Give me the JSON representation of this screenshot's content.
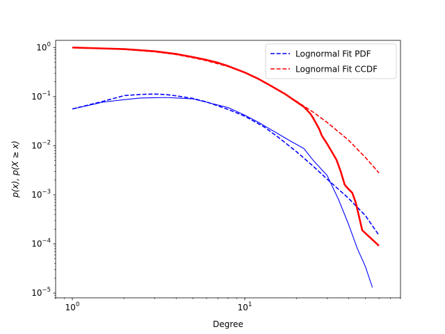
{
  "chart_data": {
    "type": "line",
    "x_scale": "log",
    "y_scale": "log",
    "xlabel": "Degree",
    "ylabel": "p(x), p(X ≥ x)",
    "xlim": [
      0.8,
      80
    ],
    "ylim": [
      8e-06,
      1.4
    ],
    "x_ticks": [
      {
        "value": 1,
        "base": "10",
        "exp": "0"
      },
      {
        "value": 10,
        "base": "10",
        "exp": "1"
      }
    ],
    "y_ticks": [
      {
        "value": 1e-05,
        "base": "10",
        "exp": "−5"
      },
      {
        "value": 0.0001,
        "base": "10",
        "exp": "−4"
      },
      {
        "value": 0.001,
        "base": "10",
        "exp": "−3"
      },
      {
        "value": 0.01,
        "base": "10",
        "exp": "−2"
      },
      {
        "value": 0.1,
        "base": "10",
        "exp": "−1"
      },
      {
        "value": 1,
        "base": "10",
        "exp": "0"
      }
    ],
    "legend_position": "top-right",
    "series": [
      {
        "name": " Lognormal Fit PDF",
        "color": "#0000ff",
        "style": "dashed",
        "in_legend": true,
        "points": [
          [
            1,
            0.056
          ],
          [
            1.5,
            0.08
          ],
          [
            2,
            0.105
          ],
          [
            2.5,
            0.111
          ],
          [
            3,
            0.113
          ],
          [
            3.5,
            0.11
          ],
          [
            4,
            0.104
          ],
          [
            5,
            0.092
          ],
          [
            6,
            0.078
          ],
          [
            8,
            0.055
          ],
          [
            10,
            0.04
          ],
          [
            13,
            0.024
          ],
          [
            16,
            0.014
          ],
          [
            20,
            0.0075
          ],
          [
            25,
            0.0038
          ],
          [
            30,
            0.0021
          ],
          [
            40,
            0.00085
          ],
          [
            50,
            0.00038
          ],
          [
            60,
            0.00015
          ]
        ]
      },
      {
        "name": "Lognormal Fit CCDF",
        "color": "#ff0000",
        "style": "dashed",
        "in_legend": true,
        "points": [
          [
            1,
            1.0
          ],
          [
            2,
            0.92
          ],
          [
            3,
            0.82
          ],
          [
            4,
            0.72
          ],
          [
            5,
            0.62
          ],
          [
            6,
            0.54
          ],
          [
            8,
            0.41
          ],
          [
            10,
            0.31
          ],
          [
            13,
            0.2
          ],
          [
            16,
            0.13
          ],
          [
            20,
            0.08
          ],
          [
            25,
            0.048
          ],
          [
            30,
            0.03
          ],
          [
            40,
            0.013
          ],
          [
            50,
            0.0058
          ],
          [
            60,
            0.0028
          ]
        ]
      },
      {
        "name": "",
        "color": "#ff0000",
        "style": "solid-thick",
        "in_legend": false,
        "points": [
          [
            1,
            1.0
          ],
          [
            2,
            0.93
          ],
          [
            3,
            0.84
          ],
          [
            4,
            0.74
          ],
          [
            5,
            0.64
          ],
          [
            6,
            0.56
          ],
          [
            7,
            0.49
          ],
          [
            8,
            0.42
          ],
          [
            10,
            0.31
          ],
          [
            12,
            0.23
          ],
          [
            14,
            0.17
          ],
          [
            17,
            0.115
          ],
          [
            20,
            0.078
          ],
          [
            22,
            0.062
          ],
          [
            24,
            0.045
          ],
          [
            25,
            0.036
          ],
          [
            27,
            0.022
          ],
          [
            28,
            0.016
          ],
          [
            30,
            0.011
          ],
          [
            32,
            0.0075
          ],
          [
            34,
            0.0052
          ],
          [
            36,
            0.003
          ],
          [
            38,
            0.0016
          ],
          [
            40,
            0.0013
          ],
          [
            42,
            0.0011
          ],
          [
            44,
            0.0007
          ],
          [
            48,
            0.00019
          ],
          [
            60,
            9.2e-05
          ]
        ]
      },
      {
        "name": "",
        "color": "#0000ff",
        "style": "solid",
        "in_legend": false,
        "points": [
          [
            1,
            0.056
          ],
          [
            1.5,
            0.077
          ],
          [
            2,
            0.087
          ],
          [
            2.5,
            0.094
          ],
          [
            3,
            0.095
          ],
          [
            3.5,
            0.096
          ],
          [
            4,
            0.094
          ],
          [
            5,
            0.09
          ],
          [
            6,
            0.077
          ],
          [
            8,
            0.06
          ],
          [
            10,
            0.042
          ],
          [
            12,
            0.03
          ],
          [
            15,
            0.019
          ],
          [
            18,
            0.013
          ],
          [
            22,
            0.0088
          ],
          [
            25,
            0.005
          ],
          [
            30,
            0.0025
          ],
          [
            35,
            0.0008
          ],
          [
            40,
            0.00025
          ],
          [
            45,
            8e-05
          ],
          [
            50,
            3.5e-05
          ],
          [
            55,
            1.3e-05
          ]
        ]
      }
    ]
  }
}
